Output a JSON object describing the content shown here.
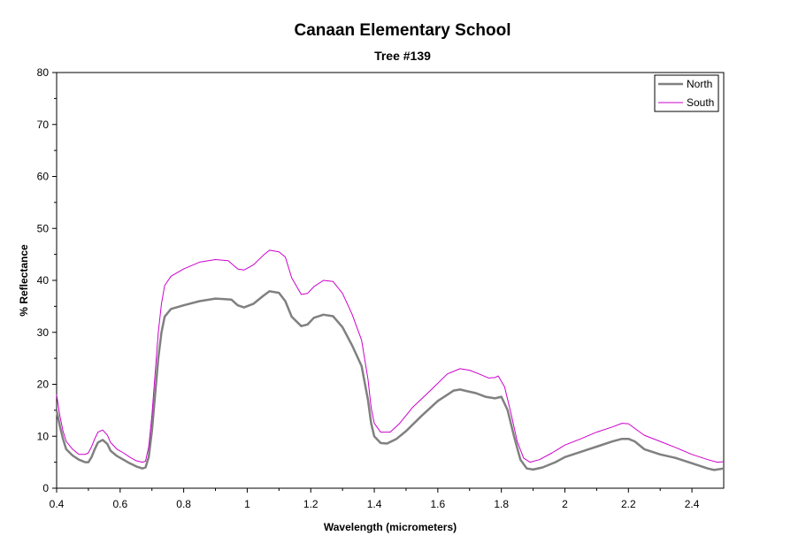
{
  "chart_data": {
    "type": "line",
    "title": "Canaan Elementary School",
    "subtitle": "Tree #139",
    "xlabel": "Wavelength (micrometers)",
    "ylabel": "% Reflectance",
    "xlim": [
      0.4,
      2.5
    ],
    "ylim": [
      0,
      80
    ],
    "x_tick_labels": [
      "0.4",
      "0.6",
      "0.8",
      "1",
      "1.2",
      "1.4",
      "1.6",
      "1.8",
      "2",
      "2.2",
      "2.4"
    ],
    "y_tick_labels": [
      "0",
      "10",
      "20",
      "30",
      "40",
      "50",
      "60",
      "70",
      "80"
    ],
    "grid": false,
    "legend_position": "top-right",
    "series": [
      {
        "name": "North",
        "color": "#808080",
        "points": [
          [
            0.4,
            15.0
          ],
          [
            0.41,
            12.0
          ],
          [
            0.42,
            9.5
          ],
          [
            0.43,
            7.5
          ],
          [
            0.45,
            6.3
          ],
          [
            0.47,
            5.5
          ],
          [
            0.49,
            5.0
          ],
          [
            0.5,
            5.0
          ],
          [
            0.51,
            6.0
          ],
          [
            0.52,
            7.5
          ],
          [
            0.53,
            8.8
          ],
          [
            0.545,
            9.3
          ],
          [
            0.56,
            8.5
          ],
          [
            0.57,
            7.2
          ],
          [
            0.59,
            6.2
          ],
          [
            0.61,
            5.5
          ],
          [
            0.63,
            4.8
          ],
          [
            0.65,
            4.2
          ],
          [
            0.67,
            3.8
          ],
          [
            0.68,
            4.0
          ],
          [
            0.69,
            6.0
          ],
          [
            0.7,
            11.0
          ],
          [
            0.71,
            18.0
          ],
          [
            0.72,
            25.0
          ],
          [
            0.73,
            30.0
          ],
          [
            0.74,
            33.0
          ],
          [
            0.76,
            34.5
          ],
          [
            0.8,
            35.2
          ],
          [
            0.85,
            36.0
          ],
          [
            0.9,
            36.5
          ],
          [
            0.95,
            36.3
          ],
          [
            0.97,
            35.2
          ],
          [
            0.99,
            34.8
          ],
          [
            1.02,
            35.5
          ],
          [
            1.05,
            37.0
          ],
          [
            1.07,
            37.9
          ],
          [
            1.1,
            37.6
          ],
          [
            1.12,
            36.0
          ],
          [
            1.14,
            33.0
          ],
          [
            1.17,
            31.2
          ],
          [
            1.19,
            31.5
          ],
          [
            1.21,
            32.8
          ],
          [
            1.24,
            33.4
          ],
          [
            1.27,
            33.1
          ],
          [
            1.3,
            31.0
          ],
          [
            1.33,
            27.5
          ],
          [
            1.36,
            23.5
          ],
          [
            1.38,
            17.0
          ],
          [
            1.39,
            12.5
          ],
          [
            1.4,
            10.0
          ],
          [
            1.42,
            8.7
          ],
          [
            1.44,
            8.6
          ],
          [
            1.47,
            9.5
          ],
          [
            1.5,
            11.0
          ],
          [
            1.55,
            14.0
          ],
          [
            1.6,
            16.8
          ],
          [
            1.65,
            18.8
          ],
          [
            1.67,
            19.0
          ],
          [
            1.69,
            18.7
          ],
          [
            1.72,
            18.3
          ],
          [
            1.75,
            17.6
          ],
          [
            1.78,
            17.3
          ],
          [
            1.8,
            17.6
          ],
          [
            1.82,
            15.0
          ],
          [
            1.84,
            10.0
          ],
          [
            1.86,
            5.5
          ],
          [
            1.88,
            3.8
          ],
          [
            1.9,
            3.6
          ],
          [
            1.93,
            4.0
          ],
          [
            1.97,
            5.0
          ],
          [
            2.0,
            6.0
          ],
          [
            2.05,
            7.0
          ],
          [
            2.1,
            8.0
          ],
          [
            2.15,
            9.0
          ],
          [
            2.18,
            9.5
          ],
          [
            2.2,
            9.5
          ],
          [
            2.22,
            9.0
          ],
          [
            2.25,
            7.5
          ],
          [
            2.3,
            6.5
          ],
          [
            2.35,
            5.8
          ],
          [
            2.4,
            4.8
          ],
          [
            2.45,
            3.8
          ],
          [
            2.47,
            3.5
          ],
          [
            2.5,
            3.8
          ]
        ]
      },
      {
        "name": "South",
        "color": "#cc00cc",
        "points": [
          [
            0.4,
            18.0
          ],
          [
            0.41,
            14.0
          ],
          [
            0.42,
            11.0
          ],
          [
            0.43,
            9.0
          ],
          [
            0.45,
            7.5
          ],
          [
            0.47,
            6.5
          ],
          [
            0.49,
            6.5
          ],
          [
            0.5,
            6.8
          ],
          [
            0.51,
            8.0
          ],
          [
            0.52,
            9.5
          ],
          [
            0.53,
            10.8
          ],
          [
            0.545,
            11.2
          ],
          [
            0.56,
            10.2
          ],
          [
            0.57,
            8.8
          ],
          [
            0.59,
            7.5
          ],
          [
            0.61,
            6.8
          ],
          [
            0.63,
            6.0
          ],
          [
            0.65,
            5.3
          ],
          [
            0.67,
            5.0
          ],
          [
            0.68,
            5.2
          ],
          [
            0.69,
            8.0
          ],
          [
            0.7,
            14.0
          ],
          [
            0.71,
            22.0
          ],
          [
            0.72,
            30.0
          ],
          [
            0.73,
            35.5
          ],
          [
            0.74,
            39.0
          ],
          [
            0.76,
            40.8
          ],
          [
            0.8,
            42.2
          ],
          [
            0.85,
            43.5
          ],
          [
            0.9,
            44.0
          ],
          [
            0.94,
            43.8
          ],
          [
            0.97,
            42.2
          ],
          [
            0.99,
            42.0
          ],
          [
            1.02,
            43.0
          ],
          [
            1.05,
            44.8
          ],
          [
            1.07,
            45.8
          ],
          [
            1.1,
            45.5
          ],
          [
            1.12,
            44.5
          ],
          [
            1.14,
            40.5
          ],
          [
            1.17,
            37.3
          ],
          [
            1.19,
            37.5
          ],
          [
            1.21,
            38.8
          ],
          [
            1.24,
            40.0
          ],
          [
            1.27,
            39.8
          ],
          [
            1.3,
            37.5
          ],
          [
            1.33,
            33.5
          ],
          [
            1.36,
            28.5
          ],
          [
            1.38,
            21.0
          ],
          [
            1.39,
            15.5
          ],
          [
            1.4,
            12.5
          ],
          [
            1.42,
            10.8
          ],
          [
            1.45,
            10.8
          ],
          [
            1.48,
            12.5
          ],
          [
            1.52,
            15.5
          ],
          [
            1.58,
            19.0
          ],
          [
            1.63,
            22.0
          ],
          [
            1.67,
            23.0
          ],
          [
            1.7,
            22.7
          ],
          [
            1.73,
            22.0
          ],
          [
            1.76,
            21.2
          ],
          [
            1.78,
            21.3
          ],
          [
            1.79,
            21.6
          ],
          [
            1.81,
            19.5
          ],
          [
            1.83,
            14.5
          ],
          [
            1.85,
            9.0
          ],
          [
            1.87,
            5.8
          ],
          [
            1.89,
            5.0
          ],
          [
            1.92,
            5.5
          ],
          [
            1.96,
            6.8
          ],
          [
            2.0,
            8.3
          ],
          [
            2.05,
            9.5
          ],
          [
            2.1,
            10.8
          ],
          [
            2.15,
            11.8
          ],
          [
            2.18,
            12.5
          ],
          [
            2.2,
            12.4
          ],
          [
            2.22,
            11.5
          ],
          [
            2.25,
            10.2
          ],
          [
            2.3,
            9.0
          ],
          [
            2.35,
            7.8
          ],
          [
            2.4,
            6.5
          ],
          [
            2.45,
            5.5
          ],
          [
            2.48,
            5.0
          ],
          [
            2.5,
            5.1
          ]
        ]
      }
    ]
  }
}
